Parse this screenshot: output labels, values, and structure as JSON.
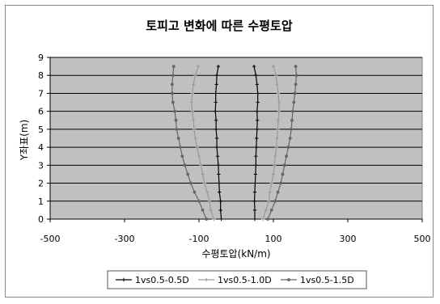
{
  "chart_data": {
    "type": "line",
    "title": "토피고 변화에 따른 수평토압",
    "xlabel": "수평토압(kN/m)",
    "ylabel": "Y좌표(m)",
    "xlim": [
      -500,
      500
    ],
    "ylim": [
      0,
      9
    ],
    "x_ticks": [
      "-500",
      "-300",
      "-100",
      "100",
      "300",
      "500"
    ],
    "x_tick_values": [
      -500,
      -300,
      -100,
      100,
      300,
      500
    ],
    "y_ticks": [
      "0",
      "1",
      "2",
      "3",
      "4",
      "5",
      "6",
      "7",
      "8",
      "9"
    ],
    "y_tick_values": [
      0,
      1,
      2,
      3,
      4,
      5,
      6,
      7,
      8,
      9
    ],
    "grid": "horizontal",
    "plot_background": "#c0c0c0",
    "legend_position": "bottom",
    "y": [
      0,
      0.5,
      1,
      1.5,
      2,
      2.5,
      3,
      3.5,
      4,
      4.5,
      5,
      5.5,
      6,
      6.5,
      7,
      7.5,
      8,
      8.5
    ],
    "series": [
      {
        "name": "1vs0.5-0.5D",
        "color": "#000000",
        "marker": "plus",
        "left_x": [
          -40,
          -42,
          -42,
          -45,
          -46,
          -47,
          -48,
          -50,
          -52,
          -52,
          -54,
          -54,
          -56,
          -55,
          -55,
          -53,
          -52,
          -48
        ],
        "right_x": [
          50,
          50,
          49,
          50,
          51,
          52,
          53,
          53,
          54,
          55,
          56,
          57,
          56,
          58,
          58,
          56,
          53,
          48
        ]
      },
      {
        "name": "1vs0.5-1.0D",
        "color": "#999999",
        "marker": "plus",
        "left_x": [
          -60,
          -68,
          -72,
          -78,
          -85,
          -90,
          -95,
          -100,
          -105,
          -110,
          -113,
          -115,
          -118,
          -120,
          -118,
          -115,
          -110,
          -102
        ],
        "right_x": [
          72,
          80,
          88,
          90,
          95,
          100,
          103,
          105,
          108,
          110,
          112,
          113,
          115,
          115,
          113,
          110,
          107,
          100
        ]
      },
      {
        "name": "1vs0.5-1.5D",
        "color": "#666666",
        "marker": "circle",
        "left_x": [
          -80,
          -90,
          -100,
          -112,
          -122,
          -130,
          -138,
          -145,
          -150,
          -155,
          -160,
          -162,
          -165,
          -170,
          -172,
          -172,
          -170,
          -168
        ],
        "right_x": [
          85,
          95,
          105,
          112,
          120,
          125,
          130,
          135,
          140,
          145,
          148,
          150,
          152,
          155,
          158,
          160,
          162,
          160
        ]
      }
    ]
  }
}
